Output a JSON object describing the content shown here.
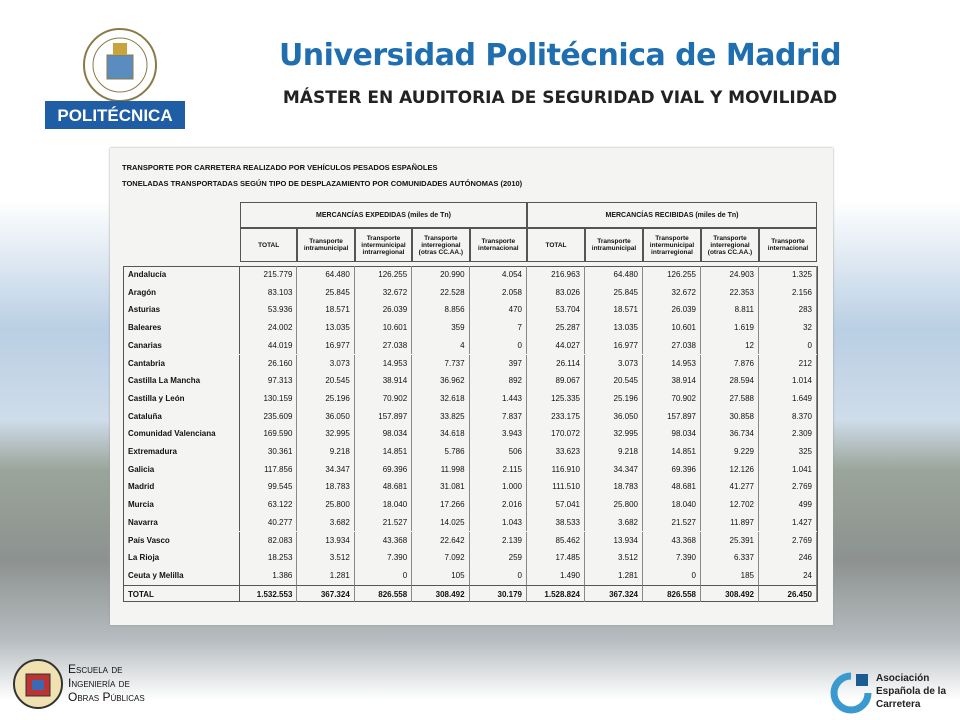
{
  "header": {
    "title": "Universidad Politécnica de Madrid",
    "subtitle": "MÁSTER EN AUDITORIA DE SEGURIDAD VIAL Y MOVILIDAD",
    "logo_label": "POLITÉCNICA"
  },
  "footer": {
    "school": [
      "Escuela de",
      "Ingeniería de",
      "Obras Públicas"
    ],
    "association": [
      "Asociación",
      "Española de la",
      "Carretera"
    ]
  },
  "table": {
    "title": [
      "TRANSPORTE POR CARRETERA REALIZADO POR VEHÍCULOS PESADOS ESPAÑOLES",
      "TONELADAS TRANSPORTADAS SEGÚN TIPO DE DESPLAZAMIENTO POR COMUNIDADES AUTÓNOMAS (2010)"
    ],
    "groups": [
      "MERCANCÍAS EXPEDIDAS (miles de Tn)",
      "MERCANCÍAS RECIBIDAS (miles de Tn)"
    ],
    "columns": [
      "TOTAL",
      "Transporte intramunicipal",
      "Transporte intermunicipal intrarregional",
      "Transporte interregional (otras CC.AA.)",
      "Transporte internacional"
    ],
    "rows": [
      [
        "Andalucía",
        "215.779",
        "64.480",
        "126.255",
        "20.990",
        "4.054",
        "216.963",
        "64.480",
        "126.255",
        "24.903",
        "1.325"
      ],
      [
        "Aragón",
        "83.103",
        "25.845",
        "32.672",
        "22.528",
        "2.058",
        "83.026",
        "25.845",
        "32.672",
        "22.353",
        "2.156"
      ],
      [
        "Asturias",
        "53.936",
        "18.571",
        "26.039",
        "8.856",
        "470",
        "53.704",
        "18.571",
        "26.039",
        "8.811",
        "283"
      ],
      [
        "Baleares",
        "24.002",
        "13.035",
        "10.601",
        "359",
        "7",
        "25.287",
        "13.035",
        "10.601",
        "1.619",
        "32"
      ],
      [
        "Canarias",
        "44.019",
        "16.977",
        "27.038",
        "4",
        "0",
        "44.027",
        "16.977",
        "27.038",
        "12",
        "0"
      ],
      [
        "Cantabria",
        "26.160",
        "3.073",
        "14.953",
        "7.737",
        "397",
        "26.114",
        "3.073",
        "14.953",
        "7.876",
        "212"
      ],
      [
        "Castilla La Mancha",
        "97.313",
        "20.545",
        "38.914",
        "36.962",
        "892",
        "89.067",
        "20.545",
        "38.914",
        "28.594",
        "1.014"
      ],
      [
        "Castilla y León",
        "130.159",
        "25.196",
        "70.902",
        "32.618",
        "1.443",
        "125.335",
        "25.196",
        "70.902",
        "27.588",
        "1.649"
      ],
      [
        "Cataluña",
        "235.609",
        "36.050",
        "157.897",
        "33.825",
        "7.837",
        "233.175",
        "36.050",
        "157.897",
        "30.858",
        "8.370"
      ],
      [
        "Comunidad Valenciana",
        "169.590",
        "32.995",
        "98.034",
        "34.618",
        "3.943",
        "170.072",
        "32.995",
        "98.034",
        "36.734",
        "2.309"
      ],
      [
        "Extremadura",
        "30.361",
        "9.218",
        "14.851",
        "5.786",
        "506",
        "33.623",
        "9.218",
        "14.851",
        "9.229",
        "325"
      ],
      [
        "Galicia",
        "117.856",
        "34.347",
        "69.396",
        "11.998",
        "2.115",
        "116.910",
        "34.347",
        "69.396",
        "12.126",
        "1.041"
      ],
      [
        "Madrid",
        "99.545",
        "18.783",
        "48.681",
        "31.081",
        "1.000",
        "111.510",
        "18.783",
        "48.681",
        "41.277",
        "2.769"
      ],
      [
        "Murcia",
        "63.122",
        "25.800",
        "18.040",
        "17.266",
        "2.016",
        "57.041",
        "25.800",
        "18.040",
        "12.702",
        "499"
      ],
      [
        "Navarra",
        "40.277",
        "3.682",
        "21.527",
        "14.025",
        "1.043",
        "38.533",
        "3.682",
        "21.527",
        "11.897",
        "1.427"
      ],
      [
        "País Vasco",
        "82.083",
        "13.934",
        "43.368",
        "22.642",
        "2.139",
        "85.462",
        "13.934",
        "43.368",
        "25.391",
        "2.769"
      ],
      [
        "La Rioja",
        "18.253",
        "3.512",
        "7.390",
        "7.092",
        "259",
        "17.485",
        "3.512",
        "7.390",
        "6.337",
        "246"
      ],
      [
        "Ceuta y Melilla",
        "1.386",
        "1.281",
        "0",
        "105",
        "0",
        "1.490",
        "1.281",
        "0",
        "185",
        "24"
      ],
      [
        "TOTAL",
        "1.532.553",
        "367.324",
        "826.558",
        "308.492",
        "30.179",
        "1.528.824",
        "367.324",
        "826.558",
        "308.492",
        "26.450"
      ]
    ]
  }
}
